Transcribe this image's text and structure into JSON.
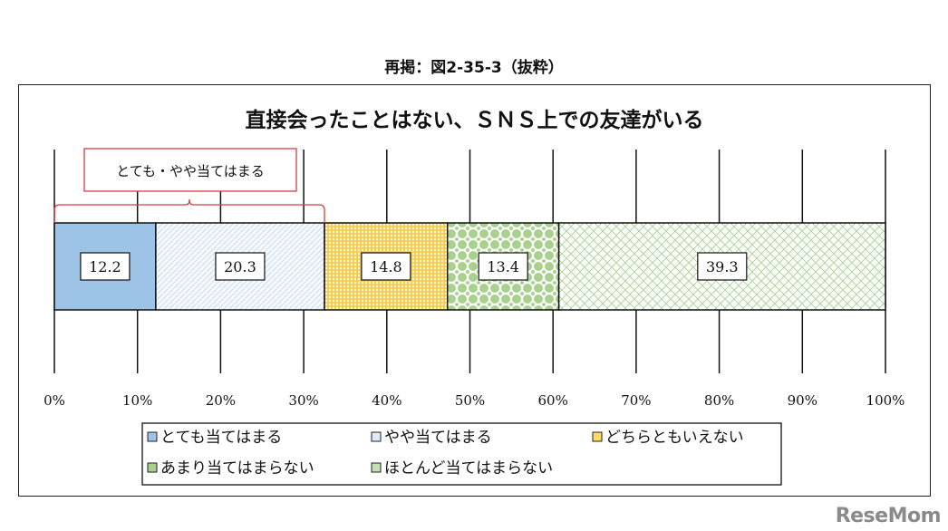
{
  "caption": "再掲：図2-35-3（抜粋）",
  "logo": "ReseMom",
  "chart_data": {
    "type": "bar",
    "orientation": "horizontal-stacked-100",
    "title": "直接会ったことはない、ＳＮＳ上での友達がいる",
    "bracket_label": "とても・やや当てはまる",
    "xlim": [
      0,
      100
    ],
    "x_ticks": [
      "0%",
      "10%",
      "20%",
      "30%",
      "40%",
      "50%",
      "60%",
      "70%",
      "80%",
      "90%",
      "100%"
    ],
    "grid": true,
    "legend_placement": "bottom",
    "series": [
      {
        "name": "とても当てはまる",
        "value": 12.2,
        "color": "#9dc3e6"
      },
      {
        "name": "やや当てはまる",
        "value": 20.3,
        "color": "#deebf7"
      },
      {
        "name": "どちらともいえない",
        "value": 14.8,
        "color": "#ffd966"
      },
      {
        "name": "あまり当てはまらない",
        "value": 13.4,
        "color": "#a9d18e"
      },
      {
        "name": "ほとんど当てはまらない",
        "value": 39.3,
        "color": "#c5e0b4"
      }
    ]
  }
}
